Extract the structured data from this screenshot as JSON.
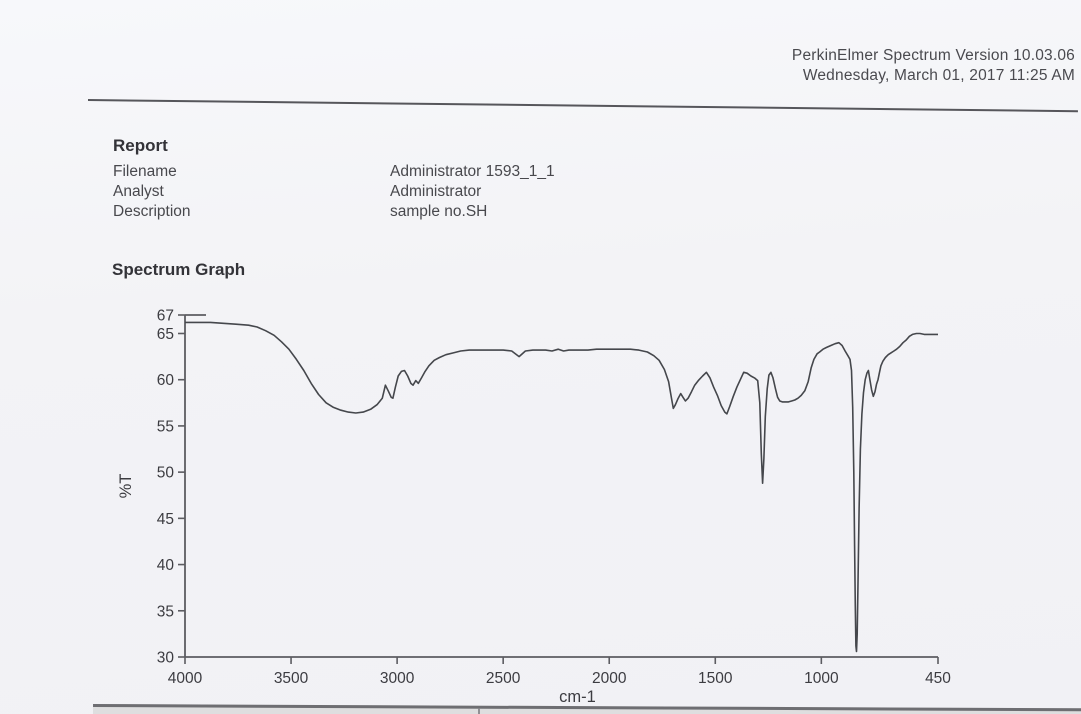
{
  "header": {
    "line1": "PerkinElmer Spectrum Version 10.03.06",
    "line2": "Wednesday, March 01, 2017 11:25 AM"
  },
  "report": {
    "title": "Report",
    "fields": [
      {
        "label": "Filename",
        "value": "Administrator 1593_1_1"
      },
      {
        "label": "Analyst",
        "value": "Administrator"
      },
      {
        "label": "Description",
        "value": "sample no.SH"
      }
    ]
  },
  "section": {
    "title": "Spectrum Graph"
  },
  "colors": {
    "curve": "#45474c",
    "axis": "#5c5c61",
    "text": "#3c3c41"
  },
  "chart_data": {
    "type": "line",
    "title": "Spectrum Graph",
    "xlabel": "cm-1",
    "ylabel": "%T",
    "xlim": [
      4000,
      450
    ],
    "ylim": [
      30,
      67
    ],
    "x_reversed": true,
    "grid": false,
    "x_ticks": [
      4000,
      3500,
      3000,
      2500,
      2000,
      1500,
      1000,
      450
    ],
    "y_ticks": [
      67,
      65,
      60,
      55,
      50,
      45,
      40,
      35,
      30
    ],
    "series": [
      {
        "name": "sample no.SH",
        "points": [
          [
            4000,
            66.2
          ],
          [
            3940,
            66.2
          ],
          [
            3880,
            66.2
          ],
          [
            3820,
            66.1
          ],
          [
            3760,
            66.0
          ],
          [
            3700,
            65.9
          ],
          [
            3660,
            65.7
          ],
          [
            3620,
            65.3
          ],
          [
            3580,
            64.8
          ],
          [
            3545,
            64.1
          ],
          [
            3510,
            63.3
          ],
          [
            3475,
            62.2
          ],
          [
            3440,
            61.0
          ],
          [
            3405,
            59.6
          ],
          [
            3370,
            58.4
          ],
          [
            3335,
            57.5
          ],
          [
            3300,
            57.0
          ],
          [
            3265,
            56.7
          ],
          [
            3230,
            56.5
          ],
          [
            3195,
            56.4
          ],
          [
            3160,
            56.5
          ],
          [
            3125,
            56.8
          ],
          [
            3095,
            57.3
          ],
          [
            3070,
            58.0
          ],
          [
            3055,
            59.4
          ],
          [
            3042,
            58.8
          ],
          [
            3028,
            58.1
          ],
          [
            3020,
            58.0
          ],
          [
            3008,
            59.2
          ],
          [
            2995,
            60.4
          ],
          [
            2980,
            60.9
          ],
          [
            2965,
            61.0
          ],
          [
            2950,
            60.4
          ],
          [
            2935,
            59.6
          ],
          [
            2925,
            59.4
          ],
          [
            2912,
            59.9
          ],
          [
            2900,
            59.6
          ],
          [
            2885,
            60.2
          ],
          [
            2868,
            60.9
          ],
          [
            2850,
            61.5
          ],
          [
            2825,
            62.1
          ],
          [
            2800,
            62.4
          ],
          [
            2770,
            62.7
          ],
          [
            2735,
            62.9
          ],
          [
            2700,
            63.1
          ],
          [
            2660,
            63.2
          ],
          [
            2620,
            63.2
          ],
          [
            2580,
            63.2
          ],
          [
            2540,
            63.2
          ],
          [
            2500,
            63.2
          ],
          [
            2460,
            63.1
          ],
          [
            2425,
            62.5
          ],
          [
            2395,
            63.1
          ],
          [
            2360,
            63.2
          ],
          [
            2330,
            63.2
          ],
          [
            2300,
            63.2
          ],
          [
            2270,
            63.1
          ],
          [
            2240,
            63.3
          ],
          [
            2215,
            63.1
          ],
          [
            2190,
            63.2
          ],
          [
            2160,
            63.2
          ],
          [
            2130,
            63.2
          ],
          [
            2100,
            63.2
          ],
          [
            2060,
            63.3
          ],
          [
            2020,
            63.3
          ],
          [
            1980,
            63.3
          ],
          [
            1940,
            63.3
          ],
          [
            1900,
            63.3
          ],
          [
            1860,
            63.2
          ],
          [
            1820,
            63.0
          ],
          [
            1790,
            62.6
          ],
          [
            1765,
            62.1
          ],
          [
            1740,
            61.1
          ],
          [
            1720,
            59.8
          ],
          [
            1705,
            57.8
          ],
          [
            1698,
            56.9
          ],
          [
            1688,
            57.3
          ],
          [
            1675,
            58.0
          ],
          [
            1663,
            58.5
          ],
          [
            1652,
            58.1
          ],
          [
            1641,
            57.7
          ],
          [
            1628,
            58.0
          ],
          [
            1612,
            58.7
          ],
          [
            1597,
            59.4
          ],
          [
            1580,
            59.9
          ],
          [
            1560,
            60.4
          ],
          [
            1542,
            60.8
          ],
          [
            1525,
            60.2
          ],
          [
            1508,
            59.2
          ],
          [
            1490,
            58.3
          ],
          [
            1472,
            57.2
          ],
          [
            1455,
            56.5
          ],
          [
            1445,
            56.3
          ],
          [
            1432,
            57.1
          ],
          [
            1415,
            58.2
          ],
          [
            1398,
            59.2
          ],
          [
            1382,
            60.0
          ],
          [
            1366,
            60.8
          ],
          [
            1350,
            60.7
          ],
          [
            1332,
            60.4
          ],
          [
            1315,
            60.2
          ],
          [
            1300,
            59.9
          ],
          [
            1290,
            57.5
          ],
          [
            1283,
            52.0
          ],
          [
            1277,
            48.8
          ],
          [
            1271,
            51.5
          ],
          [
            1264,
            56.0
          ],
          [
            1255,
            59.0
          ],
          [
            1247,
            60.5
          ],
          [
            1238,
            60.8
          ],
          [
            1228,
            60.2
          ],
          [
            1216,
            59.0
          ],
          [
            1206,
            58.1
          ],
          [
            1196,
            57.7
          ],
          [
            1184,
            57.6
          ],
          [
            1170,
            57.6
          ],
          [
            1155,
            57.6
          ],
          [
            1140,
            57.7
          ],
          [
            1125,
            57.8
          ],
          [
            1110,
            58.0
          ],
          [
            1095,
            58.3
          ],
          [
            1078,
            58.8
          ],
          [
            1062,
            59.8
          ],
          [
            1048,
            61.3
          ],
          [
            1035,
            62.2
          ],
          [
            1020,
            62.8
          ],
          [
            1008,
            63.0
          ],
          [
            992,
            63.3
          ],
          [
            975,
            63.5
          ],
          [
            955,
            63.7
          ],
          [
            935,
            63.9
          ],
          [
            917,
            64.0
          ],
          [
            902,
            63.7
          ],
          [
            888,
            63.1
          ],
          [
            875,
            62.6
          ],
          [
            865,
            62.2
          ],
          [
            858,
            61.0
          ],
          [
            852,
            57.0
          ],
          [
            847,
            50.0
          ],
          [
            843,
            42.0
          ],
          [
            840,
            35.5
          ],
          [
            837,
            31.2
          ],
          [
            834,
            30.6
          ],
          [
            831,
            32.5
          ],
          [
            827,
            38.0
          ],
          [
            822,
            46.0
          ],
          [
            816,
            52.5
          ],
          [
            809,
            56.3
          ],
          [
            801,
            58.6
          ],
          [
            793,
            60.0
          ],
          [
            785,
            60.7
          ],
          [
            778,
            61.0
          ],
          [
            771,
            60.0
          ],
          [
            763,
            58.9
          ],
          [
            755,
            58.2
          ],
          [
            747,
            58.7
          ],
          [
            740,
            59.5
          ],
          [
            733,
            60.0
          ],
          [
            726,
            60.8
          ],
          [
            719,
            61.5
          ],
          [
            710,
            62.0
          ],
          [
            698,
            62.4
          ],
          [
            685,
            62.7
          ],
          [
            672,
            62.9
          ],
          [
            658,
            63.1
          ],
          [
            645,
            63.3
          ],
          [
            630,
            63.6
          ],
          [
            615,
            64.0
          ],
          [
            600,
            64.3
          ],
          [
            585,
            64.7
          ],
          [
            570,
            64.9
          ],
          [
            552,
            65.0
          ],
          [
            535,
            65.0
          ],
          [
            515,
            64.9
          ],
          [
            495,
            64.9
          ],
          [
            475,
            64.9
          ],
          [
            460,
            64.9
          ],
          [
            450,
            64.9
          ]
        ]
      }
    ]
  }
}
